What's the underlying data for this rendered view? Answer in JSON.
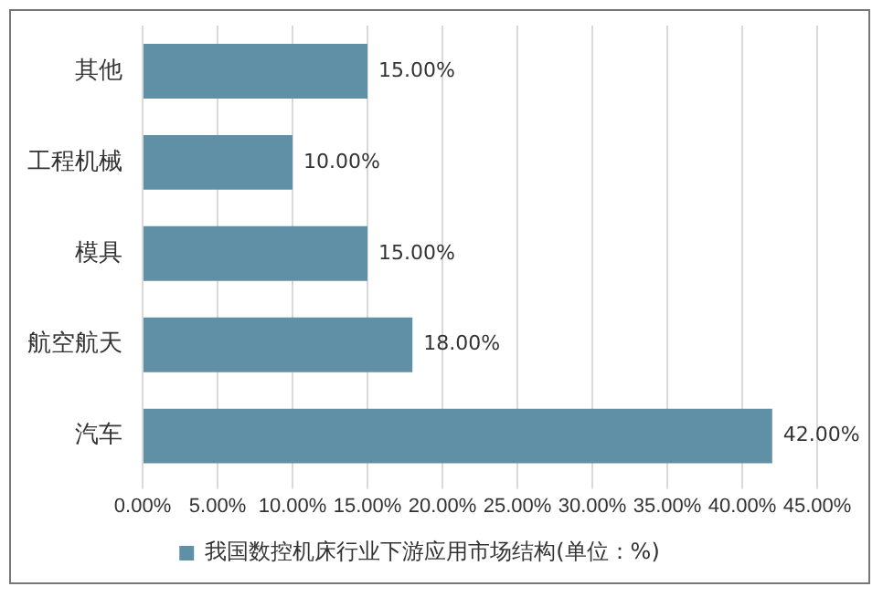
{
  "chart_data": {
    "type": "bar",
    "orientation": "horizontal",
    "categories": [
      "其他",
      "工程机械",
      "模具",
      "航空航天",
      "汽车"
    ],
    "series": [
      {
        "name": "我国数控机床行业下游应用市场结构(单位：%)",
        "color": "#5f90a6",
        "values": [
          15,
          10,
          15,
          18,
          42
        ],
        "value_labels": [
          "15.00%",
          "10.00%",
          "15.00%",
          "18.00%",
          "42.00%"
        ]
      }
    ],
    "xlim": [
      0,
      45
    ],
    "xticks": [
      {
        "value": 0,
        "label": "0.00%"
      },
      {
        "value": 5,
        "label": "5.00%"
      },
      {
        "value": 10,
        "label": "10.00%"
      },
      {
        "value": 15,
        "label": "15.00%"
      },
      {
        "value": 20,
        "label": "20.00%"
      },
      {
        "value": 25,
        "label": "25.00%"
      },
      {
        "value": 30,
        "label": "30.00%"
      },
      {
        "value": 35,
        "label": "35.00%"
      },
      {
        "value": 40,
        "label": "40.00%"
      },
      {
        "value": 45,
        "label": "45.00%"
      }
    ],
    "grid": "x",
    "legend": "bottom"
  }
}
